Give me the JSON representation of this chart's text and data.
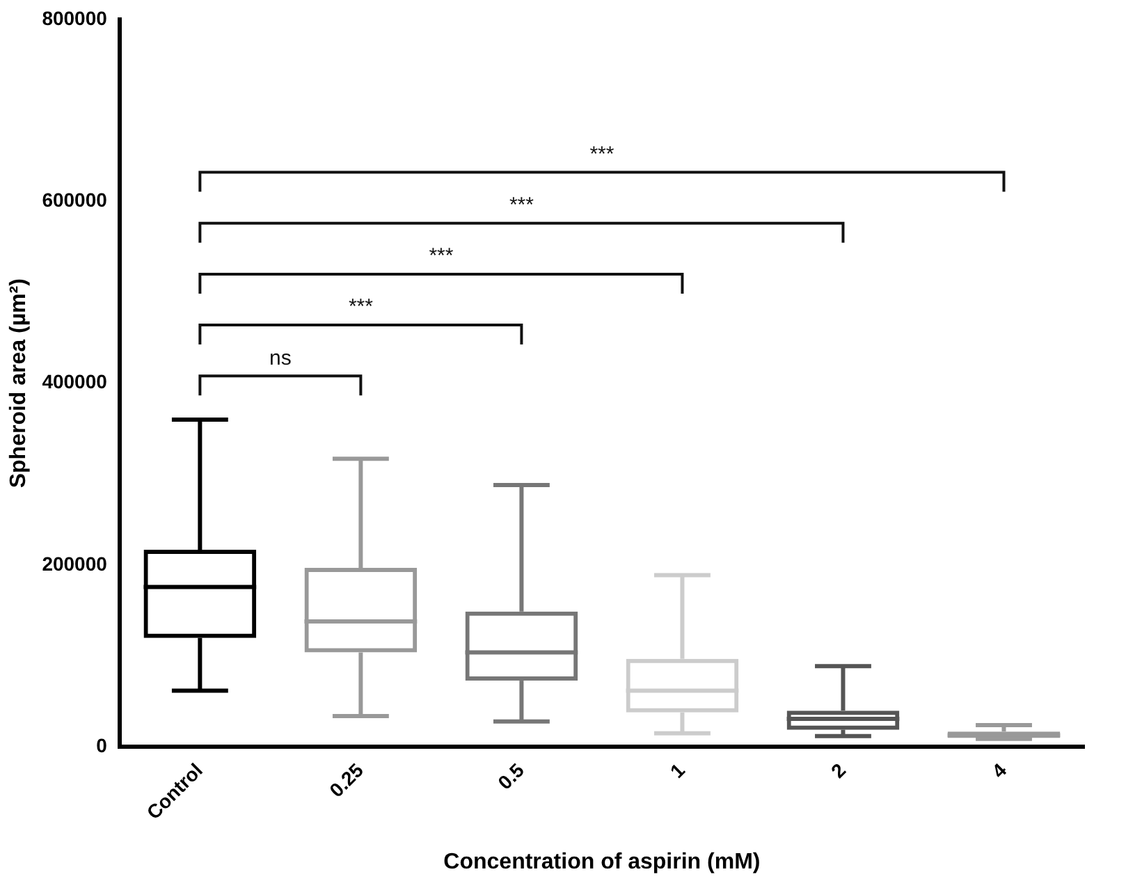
{
  "chart_data": {
    "type": "box",
    "xlabel": "Concentration of aspirin (mM)",
    "ylabel": "Spheroid area (µm²)",
    "categories": [
      "Control",
      "0.25",
      "0.5",
      "1",
      "2",
      "4"
    ],
    "colors": [
      "#000000",
      "#999999",
      "#777777",
      "#cccccc",
      "#555555",
      "#999999"
    ],
    "boxes": [
      {
        "low": 62000,
        "q1": 120000,
        "median": 176000,
        "q3": 217000,
        "high": 360000
      },
      {
        "low": 34000,
        "q1": 104000,
        "median": 138000,
        "q3": 197000,
        "high": 317000
      },
      {
        "low": 28000,
        "q1": 73000,
        "median": 104000,
        "q3": 149000,
        "high": 288000
      },
      {
        "low": 15000,
        "q1": 38000,
        "median": 62000,
        "q3": 97000,
        "high": 189000
      },
      {
        "low": 12000,
        "q1": 19000,
        "median": 31000,
        "q3": 40000,
        "high": 89000
      },
      {
        "low": 9000,
        "q1": 10000,
        "median": 13000,
        "q3": 17000,
        "high": 24000
      }
    ],
    "ylim": [
      0,
      800000
    ],
    "yticks": [
      0,
      200000,
      400000,
      600000,
      800000
    ],
    "grid": false,
    "legend": false,
    "annotations": [
      "ns",
      "***",
      "***",
      "***",
      "***"
    ]
  }
}
